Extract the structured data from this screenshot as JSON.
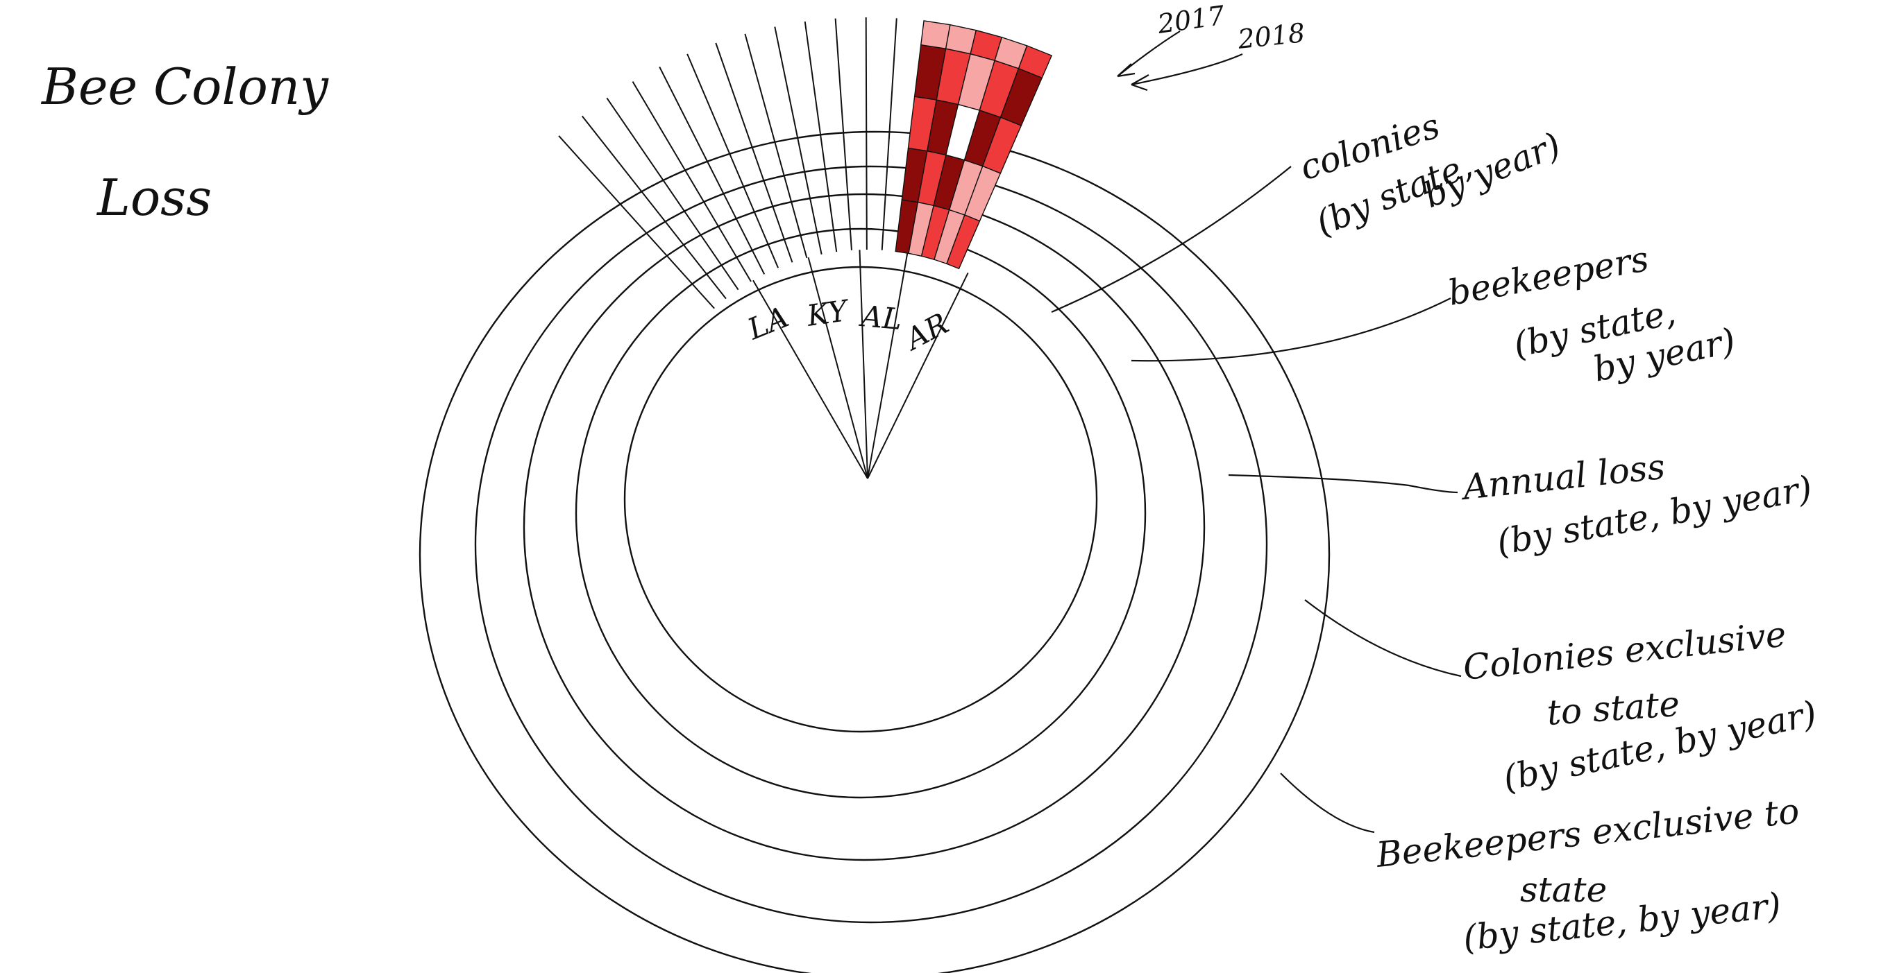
{
  "title_lines": [
    "Bee Colony",
    "Loss"
  ],
  "years": [
    "2017",
    "2018"
  ],
  "states": [
    "LA",
    "KY",
    "AL",
    "AR"
  ],
  "ring_labels": [
    {
      "lines": [
        "colonies",
        "(by state,",
        "by year)"
      ]
    },
    {
      "lines": [
        "beekeepers",
        "(by state,",
        "by year)"
      ]
    },
    {
      "lines": [
        "Annual loss",
        "(by state, by year)"
      ]
    },
    {
      "lines": [
        "Colonies exclusive",
        "to state",
        "(by state, by year)"
      ]
    },
    {
      "lines": [
        "Beekeepers exclusive to",
        "state",
        "(by state, by year)"
      ]
    }
  ],
  "colors": {
    "ink": "#111111",
    "shade_light": "#f7a6a6",
    "shade_mid": "#ee3a3a",
    "shade_dark": "#8b0a0a",
    "shade_blank": "#ffffff"
  }
}
